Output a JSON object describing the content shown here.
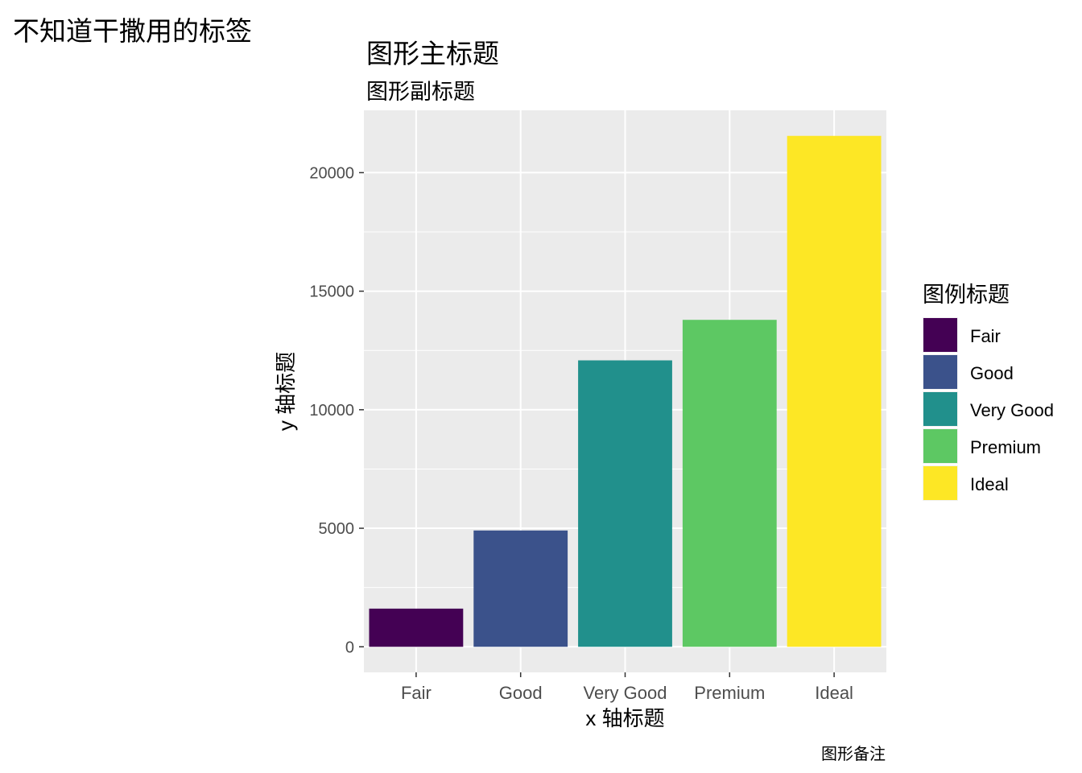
{
  "tag": "不知道干撒用的标签",
  "caption": "图形备注",
  "chart_data": {
    "type": "bar",
    "title": "图形主标题",
    "subtitle": "图形副标题",
    "xlabel": "x 轴标题",
    "ylabel": "y 轴标题",
    "categories": [
      "Fair",
      "Good",
      "Very Good",
      "Premium",
      "Ideal"
    ],
    "values": [
      1610,
      4906,
      12082,
      13791,
      21551
    ],
    "colors": [
      "#440154",
      "#3B528B",
      "#21908C",
      "#5DC863",
      "#FDE725"
    ],
    "yticks": [
      0,
      5000,
      10000,
      15000,
      20000
    ],
    "ylim": [
      -1078,
      22629
    ],
    "grid": true,
    "legend": {
      "title": "图例标题",
      "position": "right",
      "entries": [
        "Fair",
        "Good",
        "Very Good",
        "Premium",
        "Ideal"
      ]
    }
  }
}
